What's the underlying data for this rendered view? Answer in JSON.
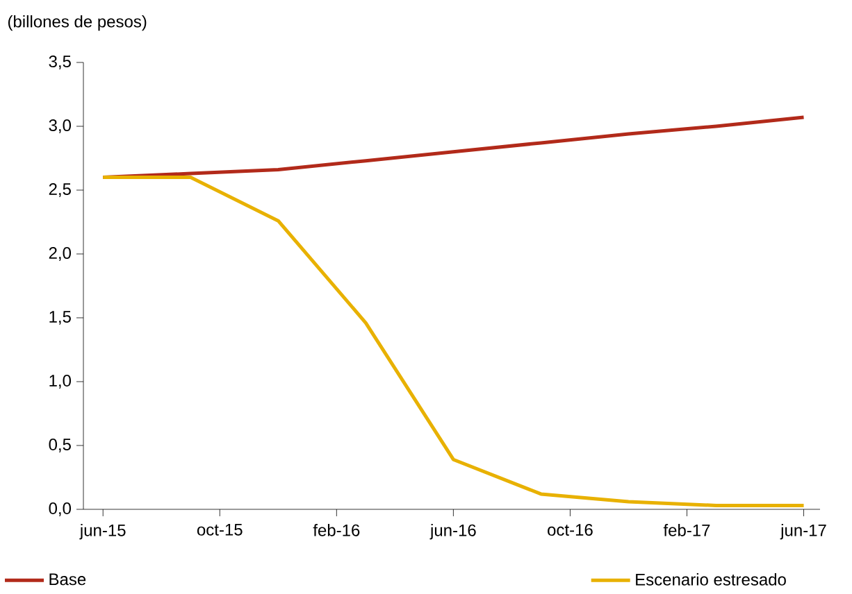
{
  "chart_data": {
    "type": "line",
    "ylabel": "(billones de pesos)",
    "x": [
      "2015-06",
      "2015-09",
      "2015-12",
      "2016-03",
      "2016-06",
      "2016-09",
      "2016-12",
      "2017-03",
      "2017-06"
    ],
    "series": [
      {
        "name": "Base",
        "color": "#b22a1a",
        "values": [
          2.6,
          2.63,
          2.66,
          2.73,
          2.8,
          2.87,
          2.94,
          3.0,
          3.07
        ]
      },
      {
        "name": "Escenario estresado",
        "color": "#e8b100",
        "values": [
          2.6,
          2.6,
          2.26,
          1.46,
          0.39,
          0.12,
          0.06,
          0.03,
          0.03
        ]
      }
    ],
    "xlim": [
      "2015-05-11",
      "2017-06-18"
    ],
    "xticks": [
      {
        "value": "2015-06",
        "label": "jun-15"
      },
      {
        "value": "2015-10",
        "label": "oct-15"
      },
      {
        "value": "2016-02",
        "label": "feb-16"
      },
      {
        "value": "2016-06",
        "label": "jun-16"
      },
      {
        "value": "2016-10",
        "label": "oct-16"
      },
      {
        "value": "2017-02",
        "label": "feb-17"
      },
      {
        "value": "2017-06",
        "label": "jun-17"
      }
    ],
    "ylim": [
      0,
      3.5
    ],
    "yticks": [
      {
        "value": 0,
        "label": "0,0"
      },
      {
        "value": 0.5,
        "label": "0,5"
      },
      {
        "value": 1,
        "label": "1,0"
      },
      {
        "value": 1.5,
        "label": "1,5"
      },
      {
        "value": 2,
        "label": "2,0"
      },
      {
        "value": 2.5,
        "label": "2,5"
      },
      {
        "value": 3,
        "label": "3,0"
      },
      {
        "value": 3.5,
        "label": "3,5"
      }
    ],
    "legend": "bottom",
    "grid": false,
    "marker": "none",
    "line_style": "solid"
  }
}
